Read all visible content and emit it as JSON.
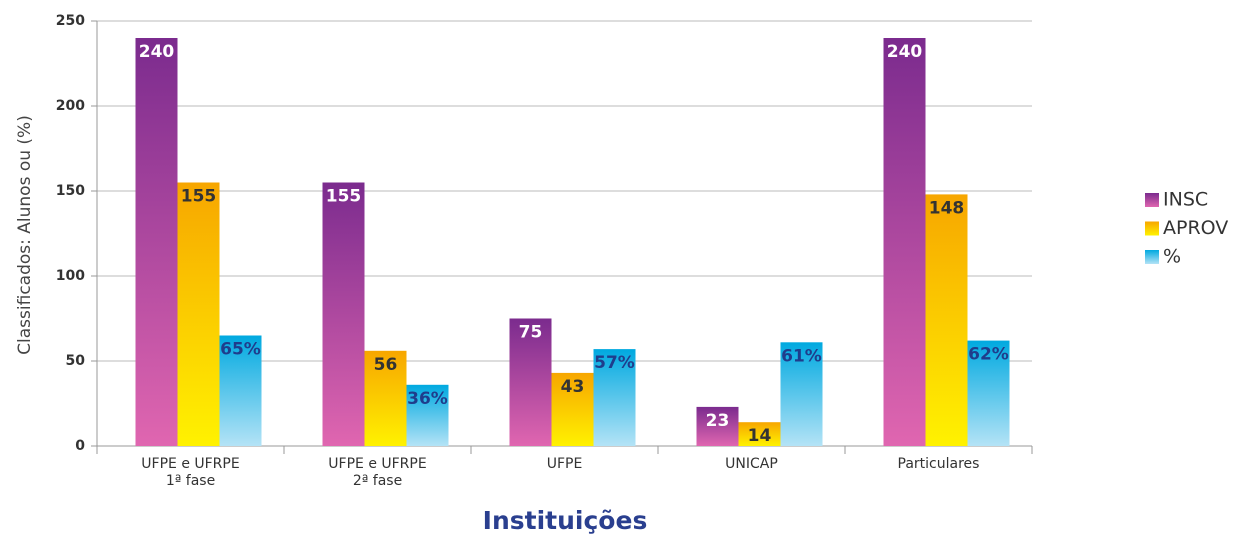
{
  "chart_data": {
    "type": "bar",
    "x_label": "Instituições",
    "y_label": "Classificados: Alunos ou (%)",
    "categories": [
      "UFPE e UFRPE\n1ª fase",
      "UFPE e UFRPE\n2ª fase",
      "UFPE",
      "UNICAP",
      "Particulares"
    ],
    "series": [
      {
        "name": "INSC",
        "color": "#7b2b8e",
        "gradient": [
          "#7b2b8e",
          "#e066b0"
        ],
        "label_color": "#ffffff",
        "values": [
          240,
          155,
          75,
          23,
          240
        ]
      },
      {
        "name": "APROV",
        "color": "#f7a600",
        "gradient": [
          "#f7a600",
          "#fff200"
        ],
        "label_color": "#333333",
        "values": [
          155,
          56,
          43,
          14,
          148
        ]
      },
      {
        "name": "%",
        "color": "#00a9e0",
        "gradient": [
          "#00a9e0",
          "#b4e3f6"
        ],
        "label_color": "#1f3d8c",
        "values": [
          65,
          36,
          57,
          61,
          62
        ],
        "value_labels": [
          "65%",
          "36%",
          "57%",
          "61%",
          "62%"
        ]
      }
    ],
    "ylim": [
      0,
      250
    ],
    "yticks": [
      0,
      50,
      100,
      150,
      200,
      250
    ],
    "grid": true,
    "legend": "right"
  }
}
